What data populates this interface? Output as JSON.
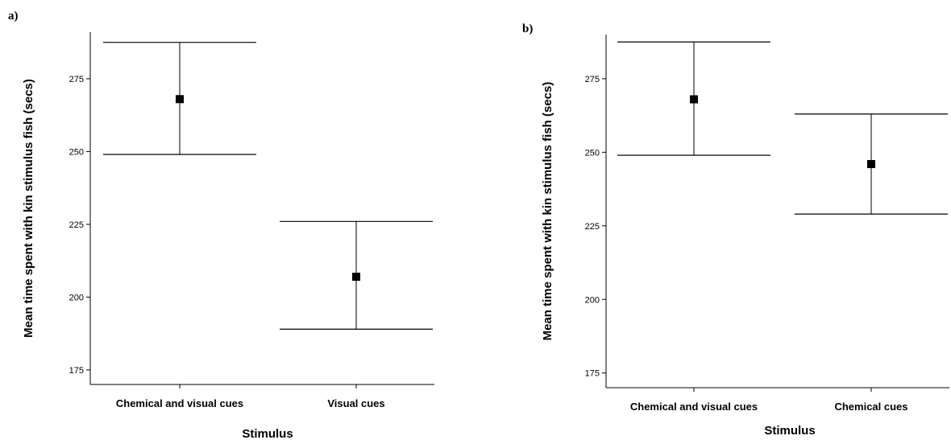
{
  "chart_data": [
    {
      "type": "scatter",
      "panel_label": "a)",
      "title": "",
      "xlabel": "Stimulus",
      "ylabel": "Mean time spent with kin stimulus fish (secs)",
      "ylim": [
        170,
        291
      ],
      "yticks": [
        "175",
        "200",
        "225",
        "250",
        "275"
      ],
      "grid": false,
      "categories": [
        "Chemical and visual cues",
        "Visual cues"
      ],
      "series": [
        {
          "values": [
            268,
            207
          ],
          "error_low": [
            249,
            189
          ],
          "error_high": [
            287.5,
            226
          ]
        }
      ]
    },
    {
      "type": "scatter",
      "panel_label": "b)",
      "title": "",
      "xlabel": "Stimulus",
      "ylabel": "Mean time spent with kin stimulus fish (secs)",
      "ylim": [
        170,
        290
      ],
      "yticks": [
        "175",
        "200",
        "225",
        "250",
        "275"
      ],
      "grid": false,
      "categories": [
        "Chemical and visual cues",
        "Chemical cues"
      ],
      "series": [
        {
          "values": [
            268,
            246
          ],
          "error_low": [
            249,
            229
          ],
          "error_high": [
            287.5,
            263
          ]
        }
      ]
    }
  ]
}
